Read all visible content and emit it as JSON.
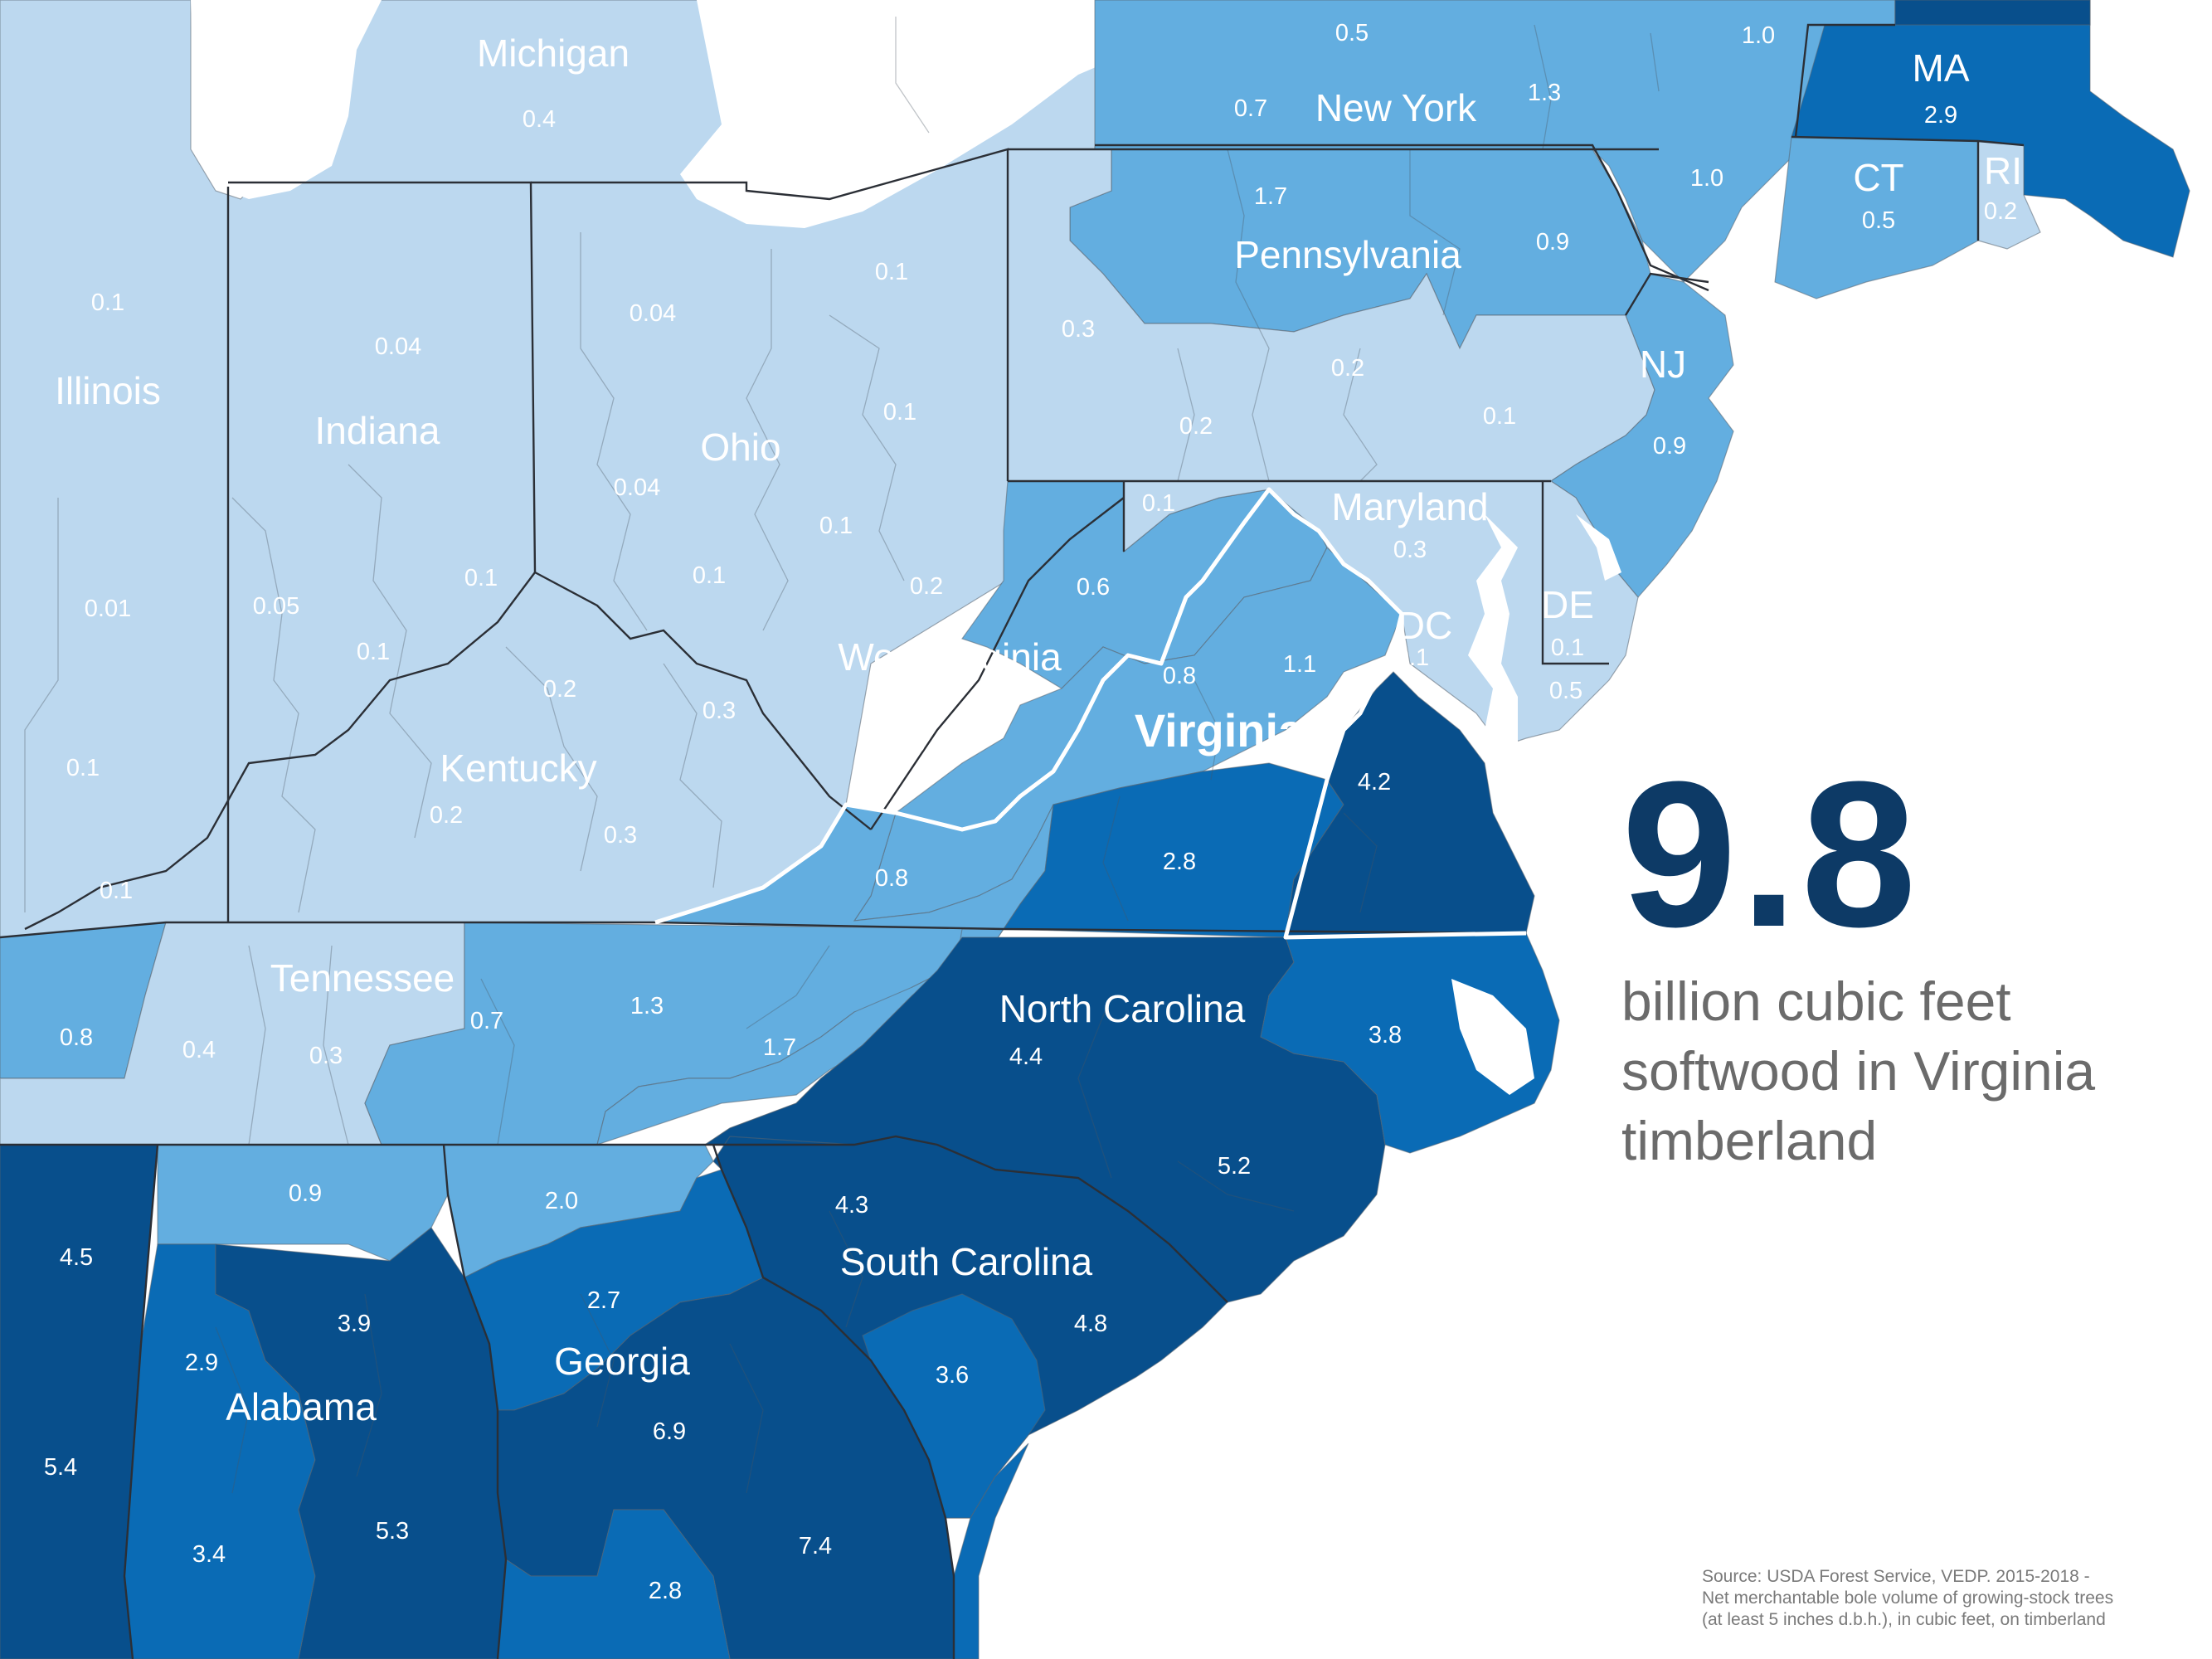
{
  "legend_colors": {
    "very_light": "#bcd8ef",
    "light": "#63aee0",
    "medium": "#0a6bb5",
    "dark": "#084f8c",
    "water": "#ffffff",
    "accent_text": "#0d3a66",
    "body_text": "#6b6b6b"
  },
  "headline": {
    "value": "9.8",
    "description_lines": [
      "billion cubic feet",
      "softwood in Virginia",
      "timberland"
    ]
  },
  "source_lines": [
    "Source: USDA Forest Service, VEDP. 2015-2018 -",
    "Net merchantable bole volume of growing-stock trees",
    "(at least 5 inches d.b.h.), in cubic feet, on timberland"
  ],
  "state_labels": [
    "Michigan",
    "New York",
    "MA",
    "CT",
    "RI",
    "Pennsylvania",
    "NJ",
    "Illinois",
    "Indiana",
    "Ohio",
    "Maryland",
    "DC",
    "DE",
    "West Virginia",
    "Virginia",
    "Kentucky",
    "Tennessee",
    "North Carolina",
    "South Carolina",
    "Georgia",
    "Alabama"
  ],
  "region_values": [
    "0.5",
    "1.0",
    "0.4",
    "0.7",
    "1.3",
    "2.9",
    "1.0",
    "1.7",
    "0.5",
    "0.2",
    "0.9",
    "0.1",
    "0.04",
    "0.1",
    "0.3",
    "0.2",
    "0.04",
    "0.1",
    "0.2",
    "0.1",
    "0.9",
    "0.04",
    "0.1",
    "0.1",
    "0.3",
    "0.01",
    "0.05",
    "0.1",
    "0.1",
    "0.6",
    "0.2",
    "0.1",
    "1.1",
    "0.2",
    "0.8",
    "0.3",
    "0.1",
    "0.5",
    "0.4",
    "4.2",
    "0.1",
    "0.2",
    "0.3",
    "0.1",
    "0.1",
    "0.8",
    "2.8",
    "0.8",
    "0.4",
    "0.3",
    "0.7",
    "1.3",
    "1.7",
    "4.4",
    "3.8",
    "5.2",
    "0.9",
    "2.0",
    "4.3",
    "4.5",
    "3.9",
    "2.7",
    "4.8",
    "2.9",
    "3.6",
    "6.9",
    "5.4",
    "5.3",
    "3.4",
    "7.4",
    "2.8"
  ]
}
